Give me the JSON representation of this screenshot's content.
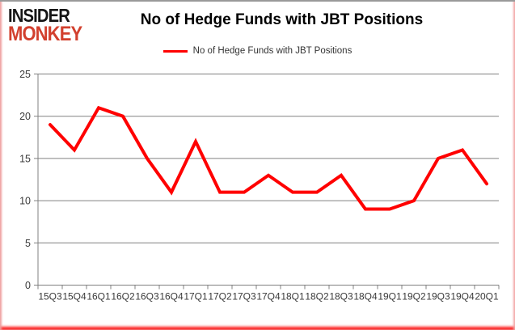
{
  "logo": {
    "line1": "INSIDER",
    "line2": "MONKEY",
    "accent_color": "#d2402e"
  },
  "header": {
    "title": "No of Hedge Funds with JBT Positions"
  },
  "legend": {
    "label": "No of Hedge Funds with JBT Positions",
    "line_color": "#ff0000",
    "position": "top-center"
  },
  "chart_data": {
    "type": "line",
    "title": "No of Hedge Funds with JBT Positions",
    "categories": [
      "15Q3",
      "15Q4",
      "16Q1",
      "16Q2",
      "16Q3",
      "16Q4",
      "17Q1",
      "17Q2",
      "17Q3",
      "17Q4",
      "18Q1",
      "18Q2",
      "18Q3",
      "18Q4",
      "19Q1",
      "19Q2",
      "19Q3",
      "19Q4",
      "20Q1"
    ],
    "series": [
      {
        "name": "No of Hedge Funds with JBT Positions",
        "color": "#ff0000",
        "values": [
          19,
          16,
          21,
          20,
          15,
          11,
          17,
          11,
          11,
          13,
          11,
          11,
          13,
          9,
          9,
          10,
          15,
          16,
          12
        ]
      }
    ],
    "xlabel": "",
    "ylabel": "",
    "ylim": [
      0,
      25
    ],
    "yticks": [
      0,
      5,
      10,
      15,
      20,
      25
    ],
    "grid": true,
    "legend_position": "top-center",
    "gridline_color": "#808080",
    "axis_text_color": "#3a3a3a"
  }
}
